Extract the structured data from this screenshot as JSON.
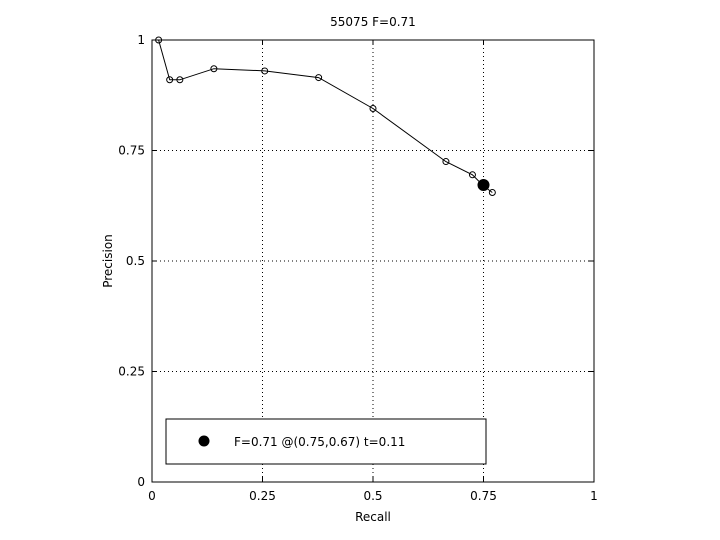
{
  "chart_data": {
    "type": "line",
    "title": "55075 F=0.71",
    "xlabel": "Recall",
    "ylabel": "Precision",
    "xlim": [
      0,
      1
    ],
    "ylim": [
      0,
      1
    ],
    "xticks": [
      0,
      0.25,
      0.5,
      0.75,
      1
    ],
    "yticks": [
      0,
      0.25,
      0.5,
      0.75,
      1
    ],
    "xtick_labels": [
      "0",
      "0.25",
      "0.5",
      "0.75",
      "1"
    ],
    "ytick_labels": [
      "0",
      "0.25",
      "0.5",
      "0.75",
      "1"
    ],
    "grid": true,
    "legend_position": "bottom",
    "series": [
      {
        "marker": "open-circle",
        "color": "#000000",
        "points": [
          {
            "x": 0.015,
            "y": 1.0
          },
          {
            "x": 0.04,
            "y": 0.91
          },
          {
            "x": 0.063,
            "y": 0.91
          },
          {
            "x": 0.14,
            "y": 0.935
          },
          {
            "x": 0.255,
            "y": 0.93
          },
          {
            "x": 0.377,
            "y": 0.915
          },
          {
            "x": 0.5,
            "y": 0.845
          },
          {
            "x": 0.665,
            "y": 0.725
          },
          {
            "x": 0.725,
            "y": 0.695
          },
          {
            "x": 0.75,
            "y": 0.67
          },
          {
            "x": 0.77,
            "y": 0.655
          }
        ]
      }
    ],
    "best_point": {
      "x": 0.75,
      "y": 0.672,
      "marker": "filled-circle",
      "color": "#000000"
    },
    "legend_entries": [
      "F=0.71 @(0.75,0.67) t=0.11"
    ]
  }
}
